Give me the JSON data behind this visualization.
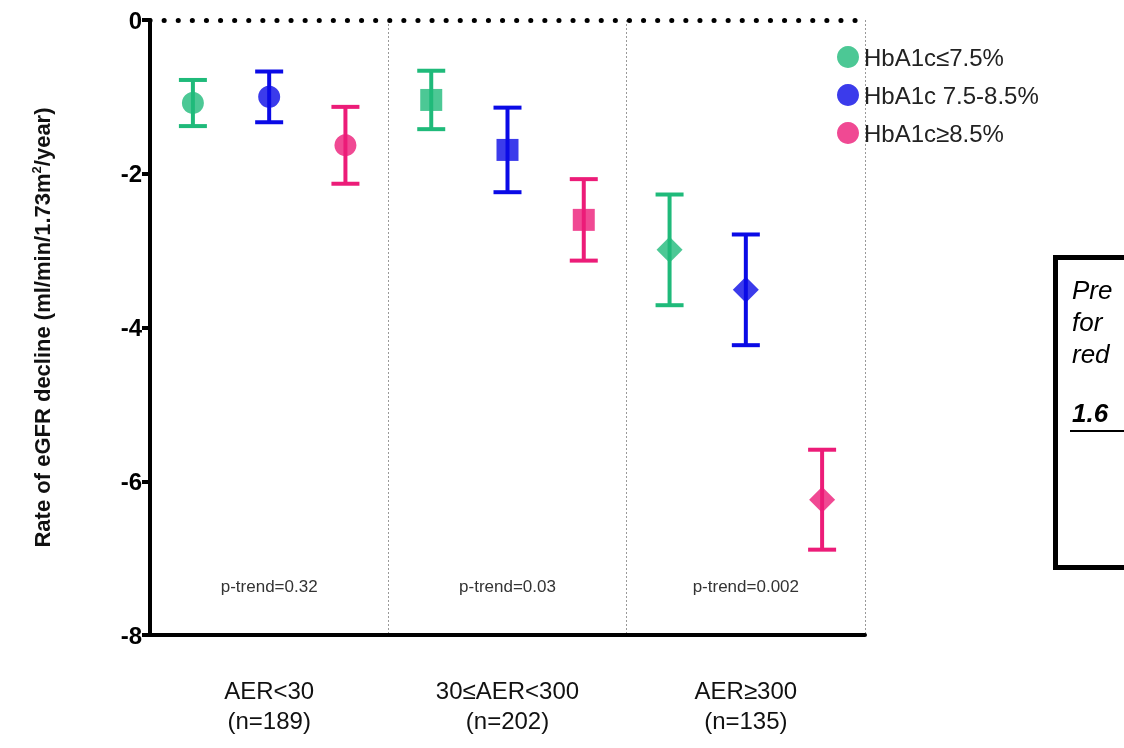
{
  "chart_data": {
    "type": "scatter",
    "ylabel": "Rate of eGFR decline (ml/min/1.73m$^{2}$/year)",
    "categories": [
      "AER<30\n(n=189)",
      "30≤AER<300\n(n=202)",
      "AER≥300\n(n=135)"
    ],
    "series": [
      {
        "name": "HbA1c≤7.5%",
        "color": "#1fba7a",
        "marker": "circle",
        "x": [
          "AER<30\n(n=189)"
        ],
        "values": [
          -1.08
        ],
        "errors": [
          0.3
        ]
      },
      {
        "name": "HbA1c 7.5-8.5%",
        "color": "#0a0ae6",
        "marker": "circle",
        "x": [
          "AER<30\n(n=189)"
        ],
        "values": [
          -1.0
        ],
        "errors": [
          0.33
        ]
      },
      {
        "name": "HbA1c≥8.5%",
        "color": "#ec1c78",
        "marker": "circle",
        "x": [
          "AER<30\n(n=189)"
        ],
        "values": [
          -1.63
        ],
        "errors": [
          0.5
        ]
      },
      {
        "color": "#1fba7a",
        "marker": "square",
        "x": [
          "30≤AER<300\n(n=202)"
        ],
        "values": [
          -1.04
        ],
        "errors": [
          0.38
        ]
      },
      {
        "color": "#0a0ae6",
        "marker": "square",
        "x": [
          "30≤AER<300\n(n=202)"
        ],
        "values": [
          -1.69
        ],
        "errors": [
          0.55
        ]
      },
      {
        "color": "#ec1c78",
        "marker": "square",
        "x": [
          "30≤AER<300\n(n=202)"
        ],
        "values": [
          -2.6
        ],
        "errors": [
          0.53
        ]
      },
      {
        "color": "#1fba7a",
        "marker": "diamond",
        "x": [
          "AER≥300\n(n=135)"
        ],
        "values": [
          -2.99
        ],
        "errors": [
          0.72
        ]
      },
      {
        "color": "#0a0ae6",
        "marker": "diamond",
        "x": [
          "AER≥300\n(n=135)"
        ],
        "values": [
          -3.51
        ],
        "errors": [
          0.72
        ]
      },
      {
        "color": "#ec1c78",
        "marker": "diamond",
        "x": [
          "AER≥300\n(n=135)"
        ],
        "values": [
          -6.24
        ],
        "errors": [
          0.65
        ]
      }
    ],
    "ylim": [
      -8,
      0
    ],
    "yticks": [
      0,
      -2,
      -4,
      -6,
      -8
    ],
    "grid": "x",
    "legend": "top right",
    "ref_lines": [
      {
        "axis": "y",
        "value": 0,
        "color": "#000000",
        "line_style": "dotted"
      }
    ],
    "annotations": [
      "p-trend=0.32",
      "p-trend=0.03",
      "p-trend=0.002",
      "Pre\nfor\nred\n\n1.6"
    ]
  }
}
